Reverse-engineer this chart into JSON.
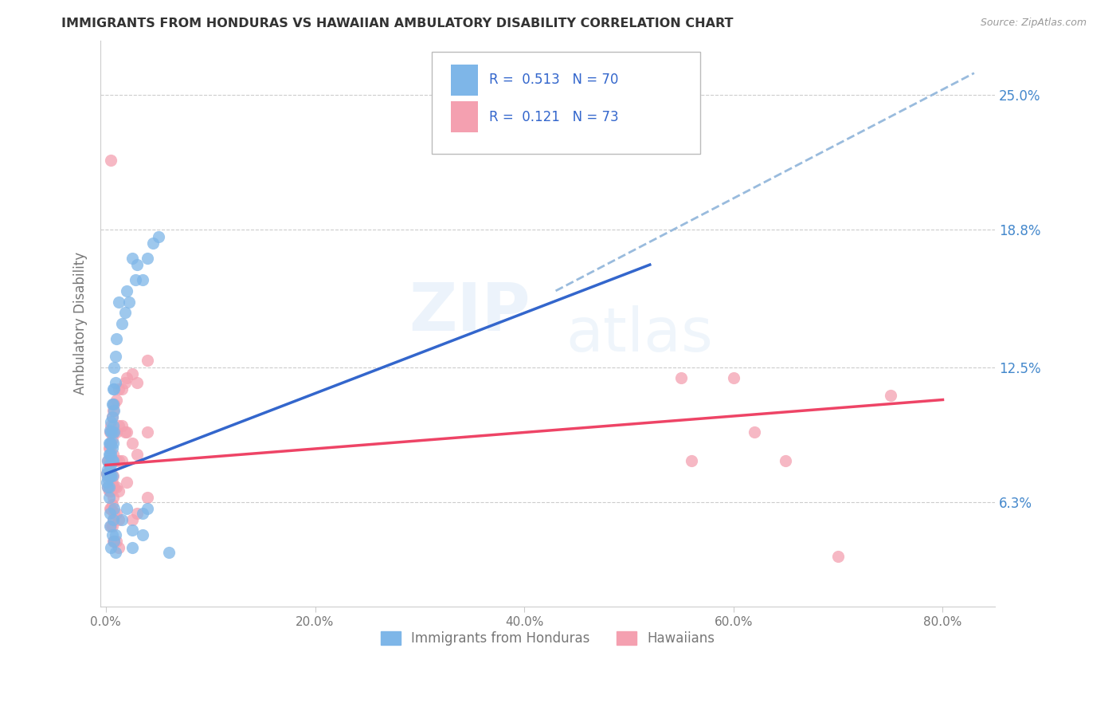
{
  "title": "IMMIGRANTS FROM HONDURAS VS HAWAIIAN AMBULATORY DISABILITY CORRELATION CHART",
  "source": "Source: ZipAtlas.com",
  "ylabel": "Ambulatory Disability",
  "watermark": "ZIPatlas",
  "ytick_labels": [
    "6.3%",
    "12.5%",
    "18.8%",
    "25.0%"
  ],
  "ytick_values": [
    0.063,
    0.125,
    0.188,
    0.25
  ],
  "xtick_values": [
    0.0,
    0.2,
    0.4,
    0.6,
    0.8
  ],
  "xtick_labels": [
    "0.0%",
    "20.0%",
    "40.0%",
    "60.0%",
    "80.0%"
  ],
  "xlim": [
    -0.005,
    0.85
  ],
  "ylim": [
    0.015,
    0.275
  ],
  "blue_color": "#7EB6E8",
  "pink_color": "#F4A0B0",
  "blue_line_color": "#3366CC",
  "pink_line_color": "#EE4466",
  "dashed_line_color": "#99BBDD",
  "blue_scatter": [
    [
      0.001,
      0.076
    ],
    [
      0.001,
      0.072
    ],
    [
      0.002,
      0.082
    ],
    [
      0.002,
      0.078
    ],
    [
      0.002,
      0.074
    ],
    [
      0.002,
      0.07
    ],
    [
      0.003,
      0.09
    ],
    [
      0.003,
      0.085
    ],
    [
      0.003,
      0.08
    ],
    [
      0.003,
      0.075
    ],
    [
      0.003,
      0.07
    ],
    [
      0.003,
      0.065
    ],
    [
      0.004,
      0.096
    ],
    [
      0.004,
      0.09
    ],
    [
      0.004,
      0.085
    ],
    [
      0.004,
      0.08
    ],
    [
      0.004,
      0.075
    ],
    [
      0.004,
      0.058
    ],
    [
      0.004,
      0.052
    ],
    [
      0.005,
      0.1
    ],
    [
      0.005,
      0.095
    ],
    [
      0.005,
      0.09
    ],
    [
      0.005,
      0.085
    ],
    [
      0.005,
      0.08
    ],
    [
      0.005,
      0.075
    ],
    [
      0.005,
      0.042
    ],
    [
      0.006,
      0.108
    ],
    [
      0.006,
      0.102
    ],
    [
      0.006,
      0.095
    ],
    [
      0.006,
      0.088
    ],
    [
      0.006,
      0.082
    ],
    [
      0.006,
      0.075
    ],
    [
      0.006,
      0.048
    ],
    [
      0.007,
      0.115
    ],
    [
      0.007,
      0.108
    ],
    [
      0.007,
      0.098
    ],
    [
      0.007,
      0.09
    ],
    [
      0.007,
      0.082
    ],
    [
      0.007,
      0.055
    ],
    [
      0.008,
      0.125
    ],
    [
      0.008,
      0.115
    ],
    [
      0.008,
      0.105
    ],
    [
      0.008,
      0.095
    ],
    [
      0.008,
      0.06
    ],
    [
      0.008,
      0.045
    ],
    [
      0.009,
      0.13
    ],
    [
      0.009,
      0.118
    ],
    [
      0.009,
      0.048
    ],
    [
      0.009,
      0.04
    ],
    [
      0.01,
      0.138
    ],
    [
      0.012,
      0.155
    ],
    [
      0.015,
      0.145
    ],
    [
      0.015,
      0.055
    ],
    [
      0.018,
      0.15
    ],
    [
      0.02,
      0.16
    ],
    [
      0.02,
      0.06
    ],
    [
      0.022,
      0.155
    ],
    [
      0.025,
      0.175
    ],
    [
      0.025,
      0.05
    ],
    [
      0.025,
      0.042
    ],
    [
      0.028,
      0.165
    ],
    [
      0.03,
      0.172
    ],
    [
      0.035,
      0.165
    ],
    [
      0.035,
      0.058
    ],
    [
      0.035,
      0.048
    ],
    [
      0.04,
      0.175
    ],
    [
      0.04,
      0.06
    ],
    [
      0.045,
      0.182
    ],
    [
      0.05,
      0.185
    ],
    [
      0.06,
      0.04
    ]
  ],
  "pink_scatter": [
    [
      0.001,
      0.076
    ],
    [
      0.002,
      0.082
    ],
    [
      0.002,
      0.075
    ],
    [
      0.002,
      0.07
    ],
    [
      0.003,
      0.088
    ],
    [
      0.003,
      0.082
    ],
    [
      0.003,
      0.075
    ],
    [
      0.003,
      0.068
    ],
    [
      0.004,
      0.095
    ],
    [
      0.004,
      0.088
    ],
    [
      0.004,
      0.082
    ],
    [
      0.004,
      0.075
    ],
    [
      0.004,
      0.068
    ],
    [
      0.004,
      0.06
    ],
    [
      0.005,
      0.098
    ],
    [
      0.005,
      0.09
    ],
    [
      0.005,
      0.082
    ],
    [
      0.005,
      0.075
    ],
    [
      0.005,
      0.068
    ],
    [
      0.005,
      0.06
    ],
    [
      0.005,
      0.052
    ],
    [
      0.006,
      0.102
    ],
    [
      0.006,
      0.092
    ],
    [
      0.006,
      0.082
    ],
    [
      0.006,
      0.072
    ],
    [
      0.006,
      0.062
    ],
    [
      0.006,
      0.052
    ],
    [
      0.007,
      0.105
    ],
    [
      0.007,
      0.095
    ],
    [
      0.007,
      0.085
    ],
    [
      0.007,
      0.075
    ],
    [
      0.007,
      0.065
    ],
    [
      0.007,
      0.055
    ],
    [
      0.007,
      0.045
    ],
    [
      0.008,
      0.108
    ],
    [
      0.008,
      0.095
    ],
    [
      0.008,
      0.082
    ],
    [
      0.008,
      0.07
    ],
    [
      0.008,
      0.058
    ],
    [
      0.008,
      0.045
    ],
    [
      0.01,
      0.11
    ],
    [
      0.01,
      0.095
    ],
    [
      0.01,
      0.082
    ],
    [
      0.01,
      0.07
    ],
    [
      0.01,
      0.058
    ],
    [
      0.01,
      0.045
    ],
    [
      0.012,
      0.115
    ],
    [
      0.012,
      0.098
    ],
    [
      0.012,
      0.082
    ],
    [
      0.012,
      0.068
    ],
    [
      0.012,
      0.055
    ],
    [
      0.012,
      0.042
    ],
    [
      0.015,
      0.115
    ],
    [
      0.015,
      0.098
    ],
    [
      0.015,
      0.082
    ],
    [
      0.018,
      0.118
    ],
    [
      0.018,
      0.095
    ],
    [
      0.02,
      0.12
    ],
    [
      0.02,
      0.095
    ],
    [
      0.02,
      0.072
    ],
    [
      0.025,
      0.122
    ],
    [
      0.025,
      0.09
    ],
    [
      0.025,
      0.055
    ],
    [
      0.03,
      0.118
    ],
    [
      0.03,
      0.085
    ],
    [
      0.03,
      0.058
    ],
    [
      0.005,
      0.22
    ],
    [
      0.04,
      0.128
    ],
    [
      0.04,
      0.095
    ],
    [
      0.04,
      0.065
    ],
    [
      0.55,
      0.12
    ],
    [
      0.56,
      0.082
    ],
    [
      0.6,
      0.12
    ],
    [
      0.62,
      0.095
    ],
    [
      0.65,
      0.082
    ],
    [
      0.7,
      0.038
    ],
    [
      0.75,
      0.112
    ]
  ],
  "blue_line_x": [
    0.0,
    0.52
  ],
  "blue_line_y": [
    0.076,
    0.172
  ],
  "dashed_line_x": [
    0.43,
    0.83
  ],
  "dashed_line_y": [
    0.16,
    0.26
  ],
  "pink_line_x": [
    0.0,
    0.8
  ],
  "pink_line_y": [
    0.08,
    0.11
  ],
  "bg_color": "#FFFFFF",
  "grid_color": "#CCCCCC",
  "title_color": "#333333",
  "axis_label_color": "#777777",
  "right_label_color": "#4488CC",
  "source_color": "#999999",
  "legend_text_color": "#3366CC"
}
